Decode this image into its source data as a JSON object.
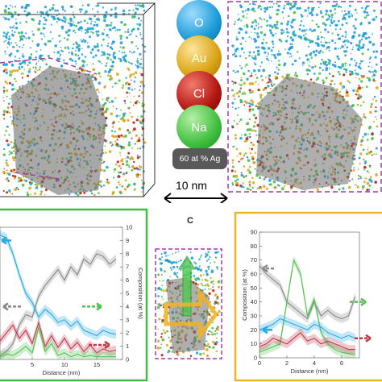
{
  "legend": {
    "elements": [
      {
        "symbol": "O",
        "color": "#1a9bd7"
      },
      {
        "symbol": "Au",
        "color": "#d9a213"
      },
      {
        "symbol": "Cl",
        "color": "#b3140f"
      },
      {
        "symbol": "Na",
        "color": "#3fbf3f"
      }
    ],
    "pill": "60 at % Ag"
  },
  "scale_bar": {
    "label": "10 nm"
  },
  "panel_c": {
    "letter": "c"
  },
  "chart_data": [
    {
      "type": "line",
      "xlabel": "Distance (nm)",
      "ylabel": "Composition (at %)",
      "frame_color": "#3cbf3c",
      "x_ticks": [
        5,
        10,
        15
      ],
      "y_ticks": [
        0,
        1,
        2,
        3,
        4,
        5,
        6,
        7,
        8,
        9,
        10
      ],
      "xlim": [
        0,
        19
      ],
      "ylim": [
        0,
        10
      ],
      "series": [
        {
          "color": "#888888",
          "x": [
            0,
            1,
            2,
            3,
            4,
            5,
            6,
            7,
            8,
            9,
            10,
            11,
            12,
            13,
            14,
            15,
            16,
            17,
            18
          ],
          "values": [
            0.3,
            0.6,
            1.2,
            2.6,
            3.4,
            3.2,
            4.8,
            5.6,
            6.2,
            6.8,
            6.0,
            7.0,
            6.4,
            7.6,
            7.2,
            8.0,
            7.8,
            7.2,
            7.6
          ]
        },
        {
          "color": "#29a9e0",
          "x": [
            0,
            1,
            2,
            3,
            4,
            5,
            6,
            7,
            8,
            9,
            10,
            11,
            12,
            13,
            14,
            15,
            16,
            17,
            18
          ],
          "values": [
            9.4,
            9.2,
            8.0,
            6.4,
            5.0,
            4.3,
            3.2,
            3.8,
            3.4,
            2.8,
            3.0,
            2.5,
            2.9,
            2.2,
            2.0,
            1.8,
            2.2,
            2.0,
            1.9
          ]
        },
        {
          "color": "#c0394b",
          "x": [
            0,
            1,
            2,
            3,
            4,
            5,
            6,
            7,
            8,
            9,
            10,
            11,
            12,
            13,
            14,
            15,
            16,
            17,
            18
          ],
          "values": [
            1.4,
            2.0,
            2.6,
            1.6,
            2.2,
            1.2,
            2.8,
            1.0,
            1.8,
            0.9,
            1.6,
            0.8,
            1.3,
            0.6,
            1.1,
            0.5,
            0.8,
            0.6,
            0.7
          ]
        },
        {
          "color": "#52c152",
          "x": [
            0,
            1,
            2,
            3,
            4,
            5,
            6,
            7,
            8,
            9,
            10,
            11,
            12,
            13,
            14,
            15,
            16,
            17,
            18
          ],
          "values": [
            0.2,
            0.4,
            0.3,
            0.6,
            1.0,
            0.5,
            2.4,
            0.6,
            1.2,
            0.3,
            0.5,
            0.2,
            0.4,
            0.2,
            0.3,
            0.2,
            0.2,
            0.2,
            0.2
          ]
        }
      ]
    },
    {
      "type": "line",
      "xlabel": "Distance (nm)",
      "ylabel": "Composition (at %)",
      "frame_color": "#f0b429",
      "x_ticks": [
        0,
        2,
        4,
        6
      ],
      "y_ticks": [
        0,
        10,
        20,
        30,
        40,
        50,
        60,
        70,
        80,
        90
      ],
      "xlim": [
        0,
        7.3
      ],
      "ylim": [
        0,
        90
      ],
      "series": [
        {
          "color": "#888888",
          "x": [
            0,
            0.5,
            1,
            1.5,
            2,
            2.5,
            3,
            3.5,
            4,
            4.5,
            5,
            5.5,
            6,
            6.5,
            7
          ],
          "values": [
            66,
            60,
            56,
            52,
            40,
            36,
            32,
            28,
            40,
            30,
            34,
            30,
            28,
            30,
            44
          ]
        },
        {
          "color": "#52c152",
          "x": [
            0,
            0.5,
            1,
            1.5,
            2,
            2.5,
            3,
            3.5,
            4,
            4.5,
            5,
            5.5,
            6,
            6.5,
            7
          ],
          "values": [
            4,
            6,
            8,
            10,
            40,
            70,
            60,
            30,
            42,
            18,
            10,
            6,
            4,
            3,
            2
          ]
        },
        {
          "color": "#29a9e0",
          "x": [
            0,
            0.5,
            1,
            1.5,
            2,
            2.5,
            3,
            3.5,
            4,
            4.5,
            5,
            5.5,
            6,
            6.5,
            7
          ],
          "values": [
            20,
            22,
            24,
            28,
            26,
            24,
            22,
            20,
            24,
            22,
            18,
            16,
            14,
            16,
            14
          ]
        },
        {
          "color": "#c0394b",
          "x": [
            0,
            0.5,
            1,
            1.5,
            2,
            2.5,
            3,
            3.5,
            4,
            4.5,
            5,
            5.5,
            6,
            6.5,
            7
          ],
          "values": [
            8,
            10,
            14,
            12,
            10,
            14,
            18,
            12,
            14,
            10,
            12,
            10,
            8,
            6,
            6
          ]
        }
      ]
    }
  ]
}
